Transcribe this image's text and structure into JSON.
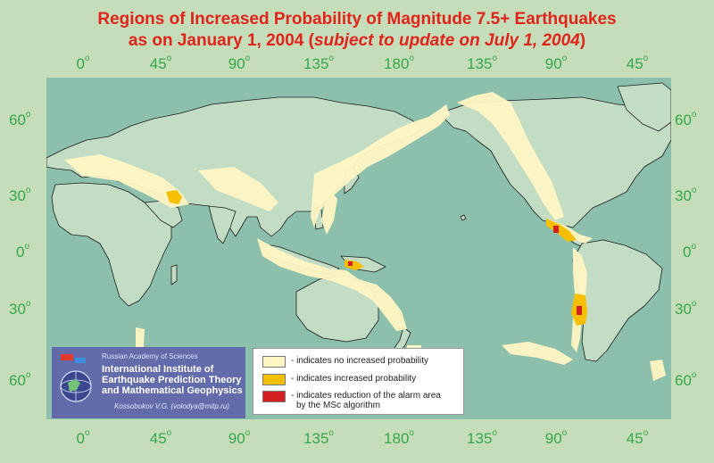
{
  "title_line1": "Regions of Increased Probability of Magnitude 7.5+ Earthquakes",
  "title_line2_prefix": "as on January 1, 2004 (",
  "title_line2_italic": "subject to update on July 1, 2004",
  "title_line2_suffix": ")",
  "degree_symbol": "o",
  "lon_labels": [
    "0",
    "45",
    "90",
    "135",
    "180",
    "135",
    "90",
    "45"
  ],
  "lat_labels": [
    "60",
    "30",
    "0",
    "30",
    "60"
  ],
  "legend": {
    "items": [
      {
        "label": "- indicates no increased probability",
        "color": "#fff6c4"
      },
      {
        "label": "- indicates increased probability",
        "color": "#f6c000"
      },
      {
        "label": "- indicates reduction of the alarm area",
        "label2": "by the MSc algorithm",
        "color": "#d42020"
      }
    ]
  },
  "logo": {
    "academy": "Russian Academy of Sciences",
    "institute": "International Institute of Earthquake Prediction Theory and Mathematical Geophysics",
    "author": "Kossobokov V.G. (volodya@mitp.ru)"
  },
  "colors": {
    "title": "#e0241b",
    "labels": "#35a74a",
    "background": "#c6ddb9",
    "ocean": "#8cc0ac",
    "land": "#c3dcc4",
    "no_increase": "#fff6c4",
    "increase": "#f6c000",
    "reduction": "#d42020"
  }
}
